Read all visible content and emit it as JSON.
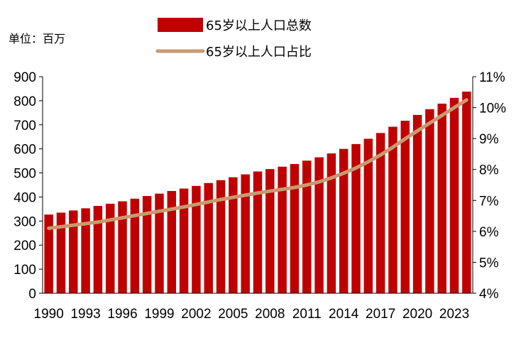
{
  "unit_label": "单位：百万",
  "legend": [
    {
      "name": "65岁以上人口总数",
      "color": "#c00000",
      "kind": "bar"
    },
    {
      "name": "65岁以上人口占比",
      "color": "#c89a6f",
      "kind": "line"
    }
  ],
  "chart_data": {
    "type": "bar+line",
    "title": "",
    "x": [
      1990,
      1991,
      1992,
      1993,
      1994,
      1995,
      1996,
      1997,
      1998,
      1999,
      2000,
      2001,
      2002,
      2003,
      2004,
      2005,
      2006,
      2007,
      2008,
      2009,
      2010,
      2011,
      2012,
      2013,
      2014,
      2015,
      2016,
      2017,
      2018,
      2019,
      2020,
      2021,
      2022,
      2023,
      2024
    ],
    "x_tick_labels": [
      "1990",
      "1993",
      "1996",
      "1999",
      "2002",
      "2005",
      "2008",
      "2011",
      "2014",
      "2017",
      "2020",
      "2023"
    ],
    "series": [
      {
        "name": "65岁以上人口总数",
        "type": "bar",
        "axis": "left",
        "values": [
          327,
          335,
          344,
          353,
          363,
          372,
          382,
          393,
          404,
          414,
          425,
          435,
          446,
          458,
          470,
          482,
          494,
          506,
          516,
          526,
          537,
          551,
          565,
          581,
          600,
          620,
          642,
          666,
          692,
          717,
          741,
          765,
          788,
          812,
          838
        ]
      },
      {
        "name": "65岁以上人口占比",
        "type": "line",
        "axis": "right",
        "values": [
          6.1,
          6.15,
          6.2,
          6.25,
          6.3,
          6.37,
          6.44,
          6.51,
          6.58,
          6.65,
          6.72,
          6.79,
          6.87,
          6.95,
          7.03,
          7.1,
          7.17,
          7.24,
          7.3,
          7.36,
          7.42,
          7.5,
          7.6,
          7.73,
          7.88,
          8.05,
          8.25,
          8.47,
          8.72,
          8.99,
          9.25,
          9.5,
          9.75,
          10.0,
          10.25
        ]
      }
    ],
    "y_left": {
      "min": 0,
      "max": 900,
      "step": 100,
      "ticks": [
        "0",
        "100",
        "200",
        "300",
        "400",
        "500",
        "600",
        "700",
        "800",
        "900"
      ]
    },
    "y_right": {
      "min": 4,
      "max": 11,
      "step": 1,
      "ticks": [
        "4%",
        "5%",
        "6%",
        "7%",
        "8%",
        "9%",
        "10%",
        "11%"
      ]
    },
    "grid": false,
    "legend_position": "top-center"
  }
}
